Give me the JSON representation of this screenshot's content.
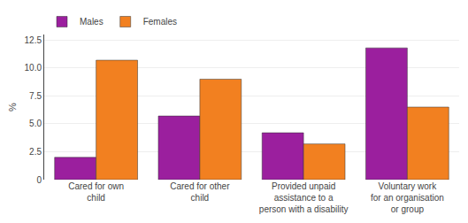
{
  "chart_data": {
    "type": "bar",
    "categories": [
      "Cared for own\nchild",
      "Cared for other\nchild",
      "Provided unpaid\nassistance to a\nperson with a disability",
      "Voluntary work\nfor an organisation\nor group"
    ],
    "series": [
      {
        "name": "Males",
        "color": "#9B1F9E",
        "values": [
          2.0,
          5.7,
          4.2,
          11.8
        ]
      },
      {
        "name": "Females",
        "color": "#F28020",
        "values": [
          10.7,
          9.0,
          3.2,
          6.5
        ]
      }
    ],
    "ylabel": "%",
    "ylim": [
      0,
      13.0
    ],
    "yticks": [
      0,
      2.5,
      {
        "value": 5.0,
        "label": "5.0"
      },
      7.5,
      {
        "value": 10.0,
        "label": "10.0"
      },
      12.5
    ],
    "grid": true,
    "legend": "upper left"
  }
}
